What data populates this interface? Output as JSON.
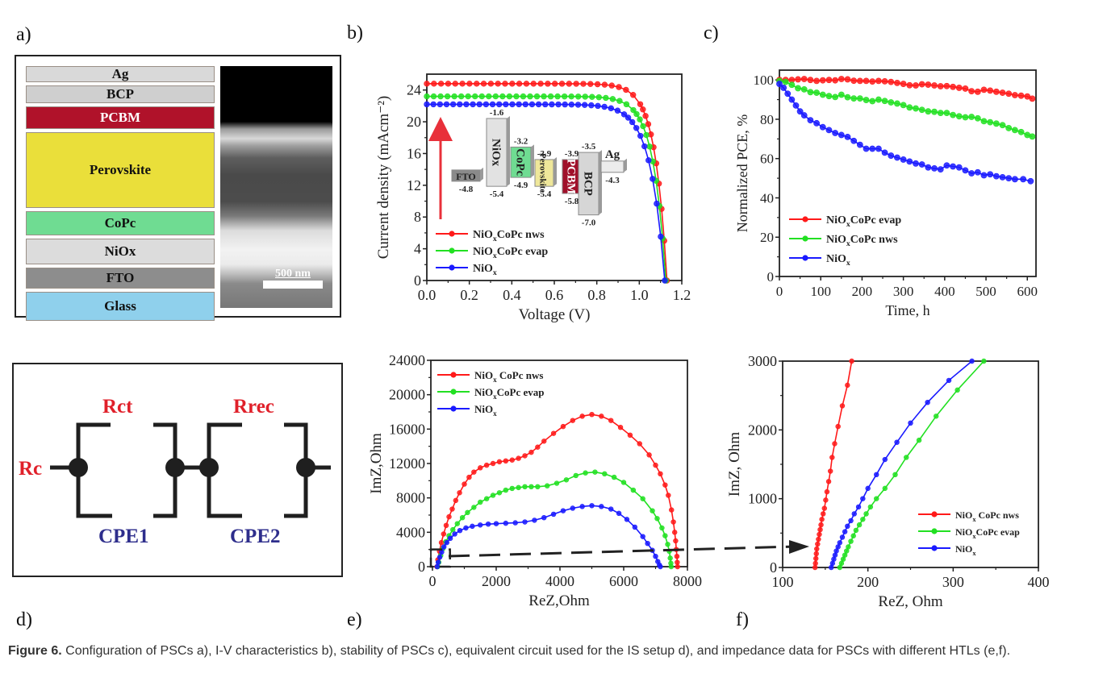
{
  "panel_labels": {
    "a": "a)",
    "b": "b)",
    "c": "c)",
    "d": "d)",
    "e": "e)",
    "f": "f)"
  },
  "panel_a": {
    "layers": [
      {
        "name": "Ag",
        "color": "#d9d9d9",
        "text_color": "#111111"
      },
      {
        "name": "BCP",
        "color": "#cfcfcf",
        "text_color": "#111111"
      },
      {
        "name": "PCBM",
        "color": "#b0122a",
        "text_color": "#ffffff"
      },
      {
        "name": "Perovskite",
        "color": "#eadf3a",
        "text_color": "#111111"
      },
      {
        "name": "CoPc",
        "color": "#6fdc92",
        "text_color": "#111111"
      },
      {
        "name": "NiOx",
        "color": "#dcdcdc",
        "text_color": "#111111"
      },
      {
        "name": "FTO",
        "color": "#8d8d8d",
        "text_color": "#111111"
      },
      {
        "name": "Glass",
        "color": "#8fd0ec",
        "text_color": "#111111"
      }
    ],
    "scale_bar_label": "500 nm"
  },
  "panel_d": {
    "labels": {
      "rc": "Rc",
      "rct": "Rct",
      "rrec": "Rrec",
      "cpe1": "CPE1",
      "cpe2": "CPE2"
    },
    "colors": {
      "resistor": "#e0202a",
      "cpe": "#2e2e8c",
      "wire": "#1f1f1f"
    }
  },
  "colors": {
    "red": "#ff1a1a",
    "green": "#22e022",
    "blue": "#1a1aff",
    "axis": "#222222",
    "arrow": "#e8303a"
  },
  "caption": {
    "label": "Figure 6.",
    "text": " Configuration of PSCs a), I-V characteristics b), stability of PSCs c), equivalent circuit used for the IS setup d), and impedance data for PSCs with different HTLs (e,f)."
  },
  "chart_data": [
    {
      "id": "b",
      "type": "line",
      "title": "",
      "xlabel": "Voltage (V)",
      "ylabel": "Current density (mAcm⁻²)",
      "xlim": [
        0,
        1.2
      ],
      "ylim": [
        0,
        26
      ],
      "xticks": [
        0.0,
        0.2,
        0.4,
        0.6,
        0.8,
        1.0,
        1.2
      ],
      "xtick_labels": [
        "0.0",
        "0.2",
        "0.4",
        "0.6",
        "0.8",
        "1.0",
        "1.2"
      ],
      "yticks": [
        0,
        4,
        8,
        12,
        16,
        20,
        24
      ],
      "legend_position": "bottom-left",
      "series": [
        {
          "name": "NiOxCoPc nws",
          "legend_main": "NiO",
          "legend_sub": "x",
          "legend_rest": "CoPc nws",
          "color": "red",
          "jsc": 24.8,
          "voc": 1.13,
          "knee": 0.93,
          "sharp": 18
        },
        {
          "name": "NiOxCoPc evap",
          "legend_main": "NiO",
          "legend_sub": "x",
          "legend_rest": "CoPc evap",
          "color": "green",
          "jsc": 23.2,
          "voc": 1.125,
          "knee": 0.9,
          "sharp": 17
        },
        {
          "name": "NiOx",
          "legend_main": "NiO",
          "legend_sub": "x",
          "legend_rest": "",
          "color": "blue",
          "jsc": 22.2,
          "voc": 1.12,
          "knee": 0.86,
          "sharp": 15
        }
      ],
      "inset_energy_diagram": {
        "materials": [
          {
            "name": "FTO",
            "top": -4.8,
            "bottom": null,
            "color": "#8a8a8a",
            "label_top": "",
            "label_bottom": "-4.8"
          },
          {
            "name": "NiOx",
            "top": -1.6,
            "bottom": -5.4,
            "color": "#e2e2e2",
            "label_top": "-1.6",
            "label_bottom": "-5.4"
          },
          {
            "name": "CoPc",
            "top": -3.2,
            "bottom": -4.9,
            "color": "#6fdc92",
            "label_top": "-3.2",
            "label_bottom": "-4.9"
          },
          {
            "name": "Perovskite",
            "top": -3.9,
            "bottom": -5.4,
            "color": "#efe79a",
            "label_top": "-3.9",
            "label_bottom": "-5.4"
          },
          {
            "name": "PCBM",
            "top": -3.9,
            "bottom": -5.8,
            "color": "#a0102a",
            "label_top": "-3.9",
            "label_bottom": "-5.8"
          },
          {
            "name": "BCP",
            "top": -3.5,
            "bottom": -7.0,
            "color": "#d6d6d6",
            "label_top": "-3.5",
            "label_bottom": "-7.0"
          },
          {
            "name": "Ag",
            "top": -4.3,
            "bottom": null,
            "color": "#ececec",
            "label_top": "Ag",
            "label_bottom": "-4.3"
          }
        ]
      }
    },
    {
      "id": "c",
      "type": "line",
      "title": "",
      "xlabel": "Time, h",
      "ylabel": "Normalized PCE, %",
      "xlim": [
        0,
        621
      ],
      "ylim": [
        0,
        105
      ],
      "xticks": [
        0,
        100,
        200,
        300,
        400,
        500,
        600
      ],
      "yticks": [
        0,
        20,
        40,
        60,
        80,
        100
      ],
      "legend_position": "bottom-left",
      "series": [
        {
          "name": "NiOxCoPc evap",
          "legend_main": "NiO",
          "legend_sub": "x",
          "legend_rest": "CoPc evap",
          "color": "red",
          "x": [
            0,
            15,
            30,
            45,
            60,
            75,
            90,
            105,
            120,
            135,
            150,
            165,
            180,
            195,
            210,
            225,
            240,
            255,
            270,
            285,
            300,
            315,
            330,
            345,
            360,
            375,
            390,
            405,
            420,
            435,
            450,
            465,
            480,
            495,
            510,
            525,
            540,
            555,
            570,
            585,
            600,
            612
          ],
          "y": [
            100,
            100,
            100,
            100.3,
            100.5,
            100,
            99.5,
            99.8,
            100,
            99.8,
            100.5,
            100.3,
            99.6,
            99.5,
            99.5,
            99.2,
            99.5,
            99.3,
            99,
            98.5,
            98,
            97.3,
            97.2,
            97.8,
            97.6,
            97.2,
            96.8,
            96.9,
            96.5,
            96,
            95.6,
            94.3,
            94,
            95,
            94.6,
            94,
            93.5,
            93,
            92.3,
            92,
            91.6,
            90.5
          ]
        },
        {
          "name": "NiOxCoPc nws",
          "legend_main": "NiO",
          "legend_sub": "x",
          "legend_rest": "CoPc nws",
          "color": "green",
          "x": [
            0,
            15,
            30,
            45,
            60,
            75,
            90,
            105,
            120,
            135,
            150,
            165,
            180,
            195,
            210,
            225,
            240,
            255,
            270,
            285,
            300,
            315,
            330,
            345,
            360,
            375,
            390,
            405,
            420,
            435,
            450,
            465,
            480,
            495,
            510,
            525,
            540,
            555,
            570,
            585,
            600,
            612
          ],
          "y": [
            99.5,
            99,
            97.5,
            95.8,
            95.2,
            93.8,
            93.5,
            92.5,
            91.8,
            91.3,
            92.5,
            91.2,
            90.6,
            90.6,
            89.8,
            89.2,
            90,
            89.3,
            88.6,
            88,
            87.2,
            86,
            85.5,
            84.8,
            84,
            83.8,
            83.2,
            83.2,
            82.2,
            81.5,
            81,
            81.2,
            80.5,
            79,
            78.5,
            77.8,
            77,
            75.5,
            74.5,
            73.5,
            72,
            71.2
          ]
        },
        {
          "name": "NiOx",
          "legend_main": "NiO",
          "legend_sub": "x",
          "legend_rest": "",
          "color": "blue",
          "x": [
            0,
            10,
            20,
            30,
            40,
            50,
            60,
            75,
            90,
            105,
            120,
            135,
            150,
            165,
            180,
            195,
            210,
            225,
            240,
            255,
            270,
            285,
            300,
            315,
            330,
            345,
            360,
            375,
            390,
            405,
            420,
            435,
            450,
            465,
            480,
            495,
            510,
            525,
            540,
            555,
            570,
            590,
            608
          ],
          "y": [
            98,
            96,
            93,
            90,
            87,
            84,
            82,
            79.5,
            78,
            76,
            74.5,
            73,
            72,
            71,
            69,
            67,
            65,
            65,
            65,
            63,
            61.5,
            60.5,
            59.5,
            58.5,
            57.5,
            57,
            55.5,
            55,
            54.5,
            56.5,
            56,
            55.5,
            54,
            52.5,
            53,
            51.5,
            52,
            51,
            50.5,
            50,
            49.5,
            49.5,
            48.5
          ]
        }
      ]
    },
    {
      "id": "e",
      "type": "line",
      "title": "",
      "xlabel": "ReZ,Ohm",
      "ylabel": "ImZ,Ohm",
      "xlim": [
        -50,
        8000
      ],
      "ylim": [
        0,
        24000
      ],
      "xticks": [
        0,
        2000,
        4000,
        6000,
        8000
      ],
      "yticks": [
        0,
        4000,
        8000,
        12000,
        16000,
        20000,
        24000
      ],
      "legend_position": "top-left",
      "inset_box": {
        "x": [
          -50,
          550
        ],
        "y": [
          0,
          2000
        ]
      },
      "series": [
        {
          "name": "NiOx CoPc nws",
          "legend_main": "NiO",
          "legend_sub": "x",
          "legend_rest": " CoPc nws",
          "color": "red",
          "x": [
            140,
            170,
            220,
            280,
            350,
            430,
            520,
            620,
            730,
            850,
            1000,
            1150,
            1300,
            1500,
            1700,
            1900,
            2100,
            2300,
            2500,
            2700,
            2900,
            3100,
            3300,
            3500,
            3800,
            4100,
            4400,
            4700,
            5000,
            5300,
            5600,
            5900,
            6200,
            6500,
            6800,
            7000,
            7150,
            7300,
            7400,
            7500,
            7560,
            7600,
            7630,
            7650,
            7670,
            7680,
            7690
          ],
          "y": [
            0,
            800,
            1800,
            2800,
            3800,
            4800,
            5800,
            6700,
            7700,
            8600,
            9600,
            10400,
            11000,
            11500,
            11800,
            12000,
            12200,
            12300,
            12400,
            12600,
            12900,
            13300,
            13900,
            14600,
            15500,
            16300,
            17000,
            17500,
            17700,
            17500,
            17000,
            16200,
            15300,
            14300,
            13000,
            11800,
            10800,
            9500,
            8300,
            6600,
            5200,
            4000,
            3000,
            2000,
            1200,
            500,
            0
          ]
        },
        {
          "name": "NiOxCoPc evap",
          "legend_main": "NiO",
          "legend_sub": "x",
          "legend_rest": "CoPc evap",
          "color": "green",
          "x": [
            165,
            200,
            260,
            330,
            420,
            520,
            640,
            780,
            940,
            1100,
            1300,
            1500,
            1700,
            1900,
            2100,
            2300,
            2500,
            2700,
            2900,
            3100,
            3300,
            3600,
            3900,
            4200,
            4500,
            4800,
            5100,
            5400,
            5700,
            6000,
            6300,
            6600,
            6900,
            7050,
            7200,
            7300,
            7380,
            7430,
            7460,
            7480,
            7490
          ],
          "y": [
            0,
            500,
            1300,
            2100,
            2900,
            3600,
            4300,
            5000,
            5700,
            6300,
            6900,
            7500,
            7900,
            8300,
            8600,
            8900,
            9100,
            9200,
            9300,
            9300,
            9300,
            9400,
            9700,
            10100,
            10600,
            10900,
            11000,
            10800,
            10400,
            9800,
            8900,
            7900,
            6500,
            5600,
            4500,
            3600,
            2600,
            1800,
            1000,
            400,
            0
          ]
        },
        {
          "name": "NiOx",
          "legend_main": "NiO",
          "legend_sub": "x",
          "legend_rest": "",
          "color": "blue",
          "x": [
            150,
            180,
            230,
            290,
            360,
            450,
            560,
            700,
            860,
            1050,
            1250,
            1500,
            1750,
            2000,
            2300,
            2600,
            2900,
            3200,
            3500,
            3800,
            4100,
            4400,
            4700,
            5000,
            5300,
            5600,
            5850,
            6100,
            6350,
            6600,
            6750,
            6900,
            7000,
            7070,
            7120,
            7150
          ],
          "y": [
            0,
            500,
            1100,
            1700,
            2300,
            2800,
            3300,
            3800,
            4200,
            4500,
            4700,
            4850,
            4950,
            5000,
            5050,
            5100,
            5200,
            5400,
            5700,
            6100,
            6500,
            6800,
            7000,
            7100,
            7000,
            6700,
            6200,
            5500,
            4600,
            3500,
            2700,
            1900,
            1200,
            600,
            200,
            0
          ]
        }
      ]
    },
    {
      "id": "f",
      "type": "line",
      "title": "",
      "xlabel": "ReZ, Ohm",
      "ylabel": "ImZ, Ohm",
      "xlim": [
        100,
        400
      ],
      "ylim": [
        0,
        3000
      ],
      "xticks": [
        100,
        200,
        300,
        400
      ],
      "yticks": [
        0,
        1000,
        2000,
        3000
      ],
      "legend_position": "bottom-right",
      "series": [
        {
          "name": "NiOx CoPc nws",
          "legend_main": "NiO",
          "legend_sub": "x",
          "legend_rest": " CoPc nws",
          "color": "red",
          "x": [
            138,
            138.5,
            139,
            139.5,
            140,
            141,
            142,
            143,
            144,
            145,
            146,
            147.5,
            149,
            150.5,
            152,
            154,
            156,
            158,
            161,
            165,
            170,
            176,
            181
          ],
          "y": [
            0,
            60,
            130,
            200,
            270,
            340,
            410,
            480,
            550,
            620,
            700,
            780,
            860,
            980,
            1100,
            1250,
            1400,
            1600,
            1800,
            2050,
            2350,
            2650,
            3000
          ]
        },
        {
          "name": "NiOxCoPc evap",
          "legend_main": "NiO",
          "legend_sub": "x",
          "legend_rest": "CoPc evap",
          "color": "green",
          "x": [
            167,
            169,
            171,
            173,
            175,
            177,
            180,
            183,
            186,
            190,
            194,
            198,
            203,
            210,
            220,
            232,
            245,
            260,
            280,
            305,
            336
          ],
          "y": [
            0,
            60,
            120,
            180,
            240,
            300,
            380,
            460,
            540,
            620,
            700,
            780,
            880,
            1000,
            1150,
            1350,
            1600,
            1850,
            2200,
            2580,
            3000
          ]
        },
        {
          "name": "NiOx",
          "legend_main": "NiO",
          "legend_sub": "x",
          "legend_rest": "",
          "color": "blue",
          "x": [
            157,
            158.5,
            160,
            161.5,
            163,
            165,
            167,
            170,
            173,
            176,
            180,
            184,
            189,
            194,
            200,
            210,
            220,
            234,
            250,
            270,
            295,
            322
          ],
          "y": [
            0,
            60,
            120,
            180,
            240,
            300,
            360,
            440,
            520,
            600,
            680,
            780,
            880,
            1000,
            1150,
            1350,
            1570,
            1820,
            2100,
            2400,
            2720,
            3000
          ]
        }
      ]
    }
  ]
}
